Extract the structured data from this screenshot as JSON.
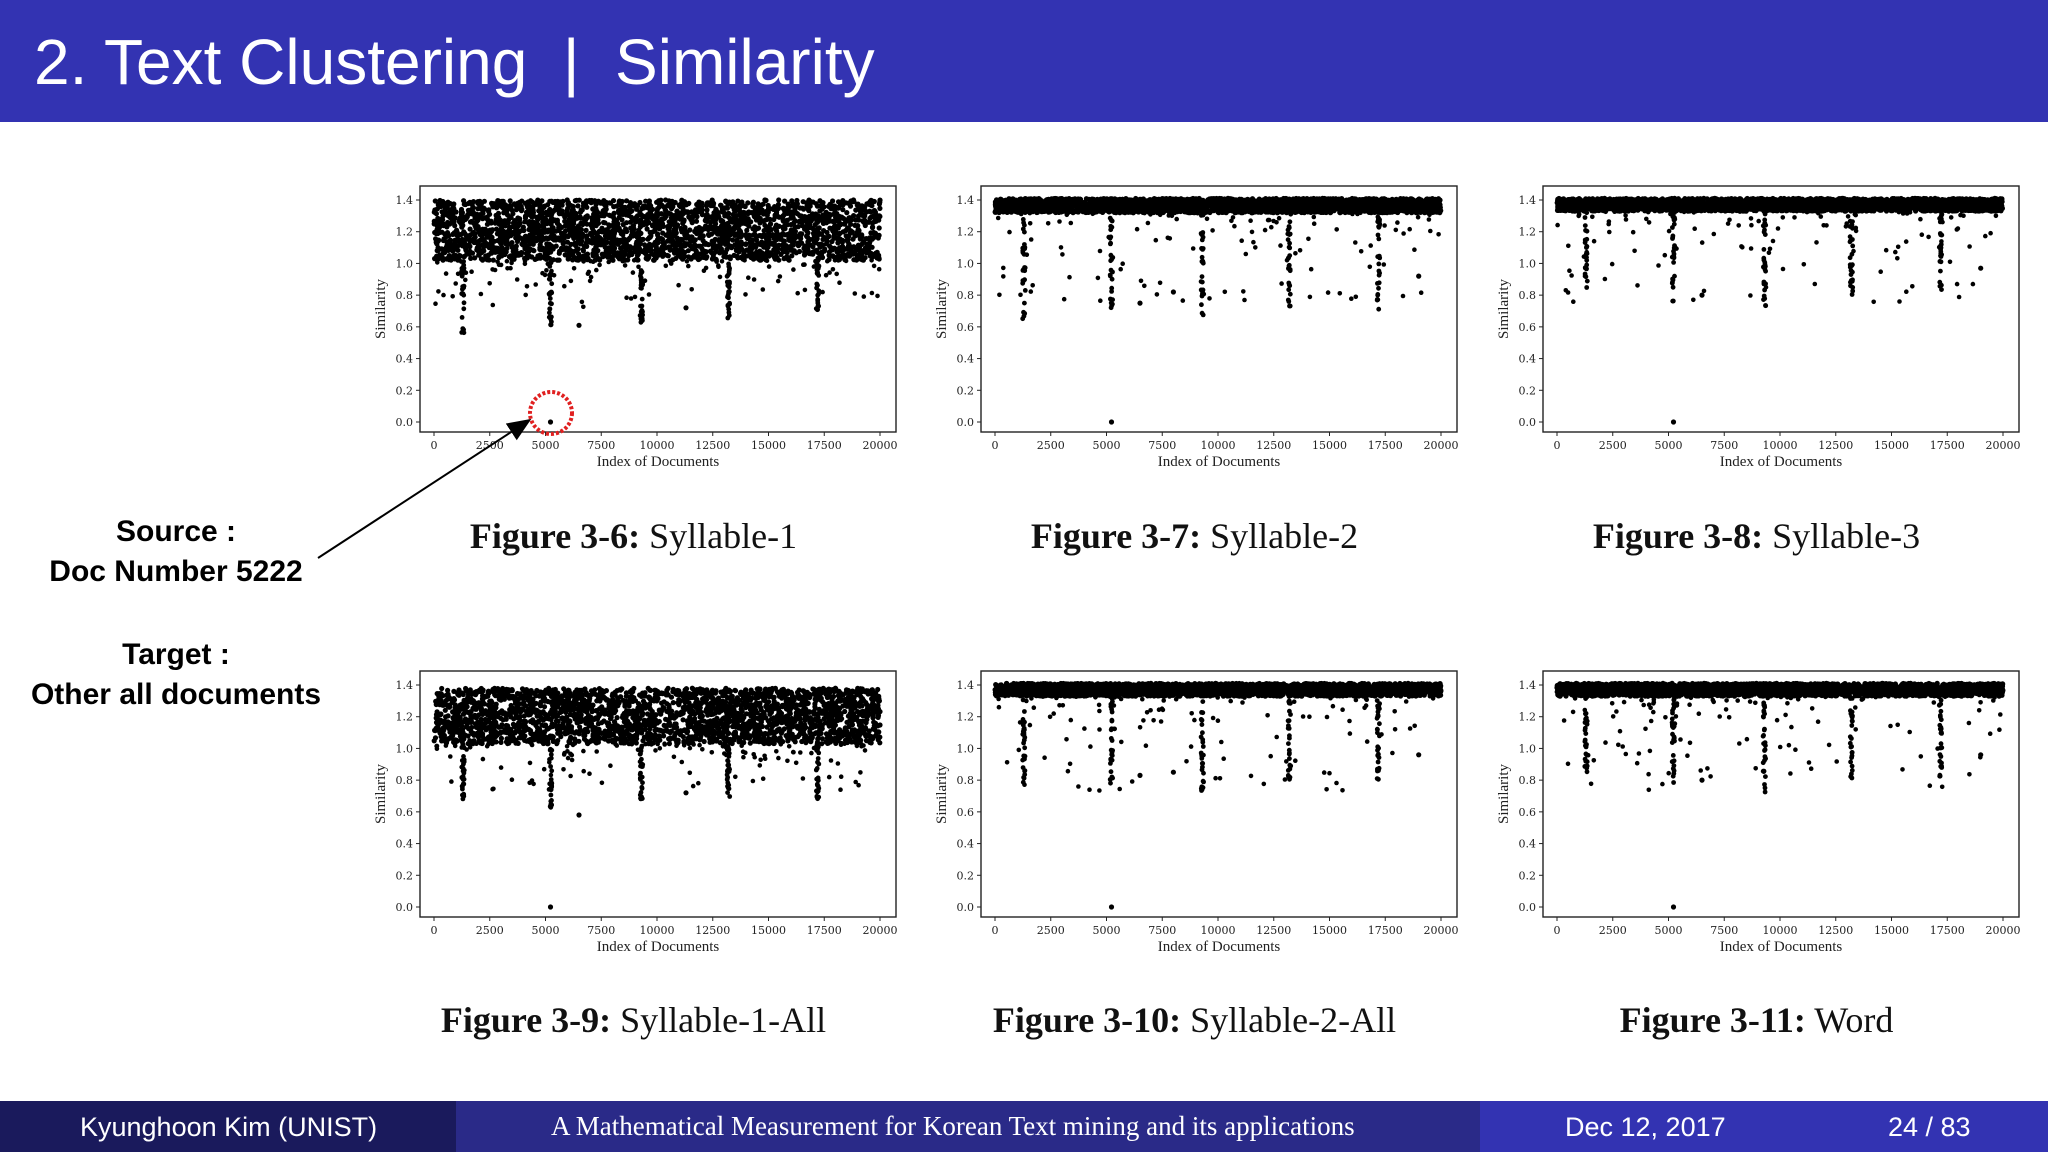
{
  "slide": {
    "title": "2. Text Clustering  |  Similarity",
    "header_color": "#3333b2"
  },
  "annotation": {
    "source_label": "Source :",
    "source_value": "Doc Number 5222",
    "target_label": "Target :",
    "target_value": "Other all documents",
    "highlight_color": "#e02020",
    "highlighted_point": {
      "x": 5222,
      "y": 0.0
    }
  },
  "figures": [
    {
      "number": "Figure 3-6:",
      "name": "Syllable-1"
    },
    {
      "number": "Figure 3-7:",
      "name": "Syllable-2"
    },
    {
      "number": "Figure 3-8:",
      "name": "Syllable-3"
    },
    {
      "number": "Figure 3-9:",
      "name": "Syllable-1-All"
    },
    {
      "number": "Figure 3-10:",
      "name": "Syllable-2-All"
    },
    {
      "number": "Figure 3-11:",
      "name": "Word"
    }
  ],
  "chart_data": [
    {
      "type": "scatter",
      "ylabel": "Similarity",
      "xlabel": "Index of Documents",
      "xlim": [
        0,
        20000
      ],
      "ylim": [
        0.0,
        1.4
      ],
      "xticks": [
        "0",
        "2500",
        "5000",
        "7500",
        "10000",
        "12500",
        "15000",
        "17500",
        "20000"
      ],
      "yticks": [
        "0.0",
        "0.2",
        "0.4",
        "0.6",
        "0.8",
        "1.0",
        "1.2",
        "1.4"
      ],
      "band": [
        1.02,
        1.4
      ],
      "spikes": [
        [
          1300,
          0.56
        ],
        [
          5222,
          0.6
        ],
        [
          9300,
          0.62
        ],
        [
          13200,
          0.64
        ],
        [
          17200,
          0.7
        ]
      ],
      "outliers": [
        [
          5222,
          0.0
        ],
        [
          6500,
          0.61
        ],
        [
          11300,
          0.72
        ]
      ]
    },
    {
      "type": "scatter",
      "ylabel": "Similarity",
      "xlabel": "Index of Documents",
      "xlim": [
        0,
        20000
      ],
      "ylim": [
        0.0,
        1.4
      ],
      "xticks": [
        "0",
        "2500",
        "5000",
        "7500",
        "10000",
        "12500",
        "15000",
        "17500",
        "20000"
      ],
      "yticks": [
        "0.0",
        "0.2",
        "0.4",
        "0.6",
        "0.8",
        "1.0",
        "1.2",
        "1.4"
      ],
      "band": [
        1.32,
        1.41
      ],
      "spikes": [
        [
          1300,
          0.6
        ],
        [
          5222,
          0.67
        ],
        [
          9300,
          0.64
        ],
        [
          13200,
          0.7
        ],
        [
          17200,
          0.7
        ]
      ],
      "outliers": [
        [
          5222,
          0.0
        ],
        [
          6500,
          0.75
        ],
        [
          8000,
          0.82
        ],
        [
          19000,
          0.92
        ]
      ]
    },
    {
      "type": "scatter",
      "ylabel": "Similarity",
      "xlabel": "Index of Documents",
      "xlim": [
        0,
        20000
      ],
      "ylim": [
        0.0,
        1.4
      ],
      "xticks": [
        "0",
        "2500",
        "5000",
        "7500",
        "10000",
        "12500",
        "15000",
        "17500",
        "20000"
      ],
      "yticks": [
        "0.0",
        "0.2",
        "0.4",
        "0.6",
        "0.8",
        "1.0",
        "1.2",
        "1.4"
      ],
      "band": [
        1.33,
        1.41
      ],
      "spikes": [
        [
          1300,
          0.8
        ],
        [
          5222,
          0.75
        ],
        [
          9300,
          0.7
        ],
        [
          13200,
          0.8
        ],
        [
          17200,
          0.82
        ]
      ],
      "outliers": [
        [
          5222,
          0.0
        ],
        [
          6500,
          0.8
        ],
        [
          19000,
          0.97
        ]
      ]
    },
    {
      "type": "scatter",
      "ylabel": "Similarity",
      "xlabel": "Index of Documents",
      "xlim": [
        0,
        20000
      ],
      "ylim": [
        0.0,
        1.4
      ],
      "xticks": [
        "0",
        "2500",
        "5000",
        "7500",
        "10000",
        "12500",
        "15000",
        "17500",
        "20000"
      ],
      "yticks": [
        "0.0",
        "0.2",
        "0.4",
        "0.6",
        "0.8",
        "1.0",
        "1.2",
        "1.4"
      ],
      "band": [
        1.03,
        1.38
      ],
      "spikes": [
        [
          1300,
          0.55
        ],
        [
          5222,
          0.62
        ],
        [
          9300,
          0.68
        ],
        [
          13200,
          0.65
        ],
        [
          17200,
          0.68
        ]
      ],
      "outliers": [
        [
          5222,
          0.0
        ],
        [
          6500,
          0.58
        ],
        [
          11300,
          0.72
        ]
      ]
    },
    {
      "type": "scatter",
      "ylabel": "Similarity",
      "xlabel": "Index of Documents",
      "xlim": [
        0,
        20000
      ],
      "ylim": [
        0.0,
        1.4
      ],
      "xticks": [
        "0",
        "2500",
        "5000",
        "7500",
        "10000",
        "12500",
        "15000",
        "17500",
        "20000"
      ],
      "yticks": [
        "0.0",
        "0.2",
        "0.4",
        "0.6",
        "0.8",
        "1.0",
        "1.2",
        "1.4"
      ],
      "band": [
        1.33,
        1.41
      ],
      "spikes": [
        [
          1300,
          0.74
        ],
        [
          5222,
          0.76
        ],
        [
          9300,
          0.72
        ],
        [
          13200,
          0.8
        ],
        [
          17200,
          0.8
        ]
      ],
      "outliers": [
        [
          5222,
          0.0
        ],
        [
          6500,
          0.83
        ],
        [
          8000,
          0.85
        ],
        [
          19000,
          0.96
        ]
      ]
    },
    {
      "type": "scatter",
      "ylabel": "Similarity",
      "xlabel": "Index of Documents",
      "xlim": [
        0,
        20000
      ],
      "ylim": [
        0.0,
        1.4
      ],
      "xticks": [
        "0",
        "2500",
        "5000",
        "7500",
        "10000",
        "12500",
        "15000",
        "17500",
        "20000"
      ],
      "yticks": [
        "0.0",
        "0.2",
        "0.4",
        "0.6",
        "0.8",
        "1.0",
        "1.2",
        "1.4"
      ],
      "band": [
        1.33,
        1.41
      ],
      "spikes": [
        [
          1300,
          0.8
        ],
        [
          5222,
          0.75
        ],
        [
          9300,
          0.72
        ],
        [
          13200,
          0.8
        ],
        [
          17200,
          0.8
        ]
      ],
      "outliers": [
        [
          5222,
          0.0
        ],
        [
          6500,
          0.8
        ],
        [
          19000,
          0.96
        ]
      ]
    }
  ],
  "footer": {
    "author": "Kyunghoon Kim (UNIST)",
    "talk_title": "A Mathematical Measurement for Korean Text mining and its applications",
    "date": "Dec 12, 2017",
    "page": "24 / 83"
  }
}
